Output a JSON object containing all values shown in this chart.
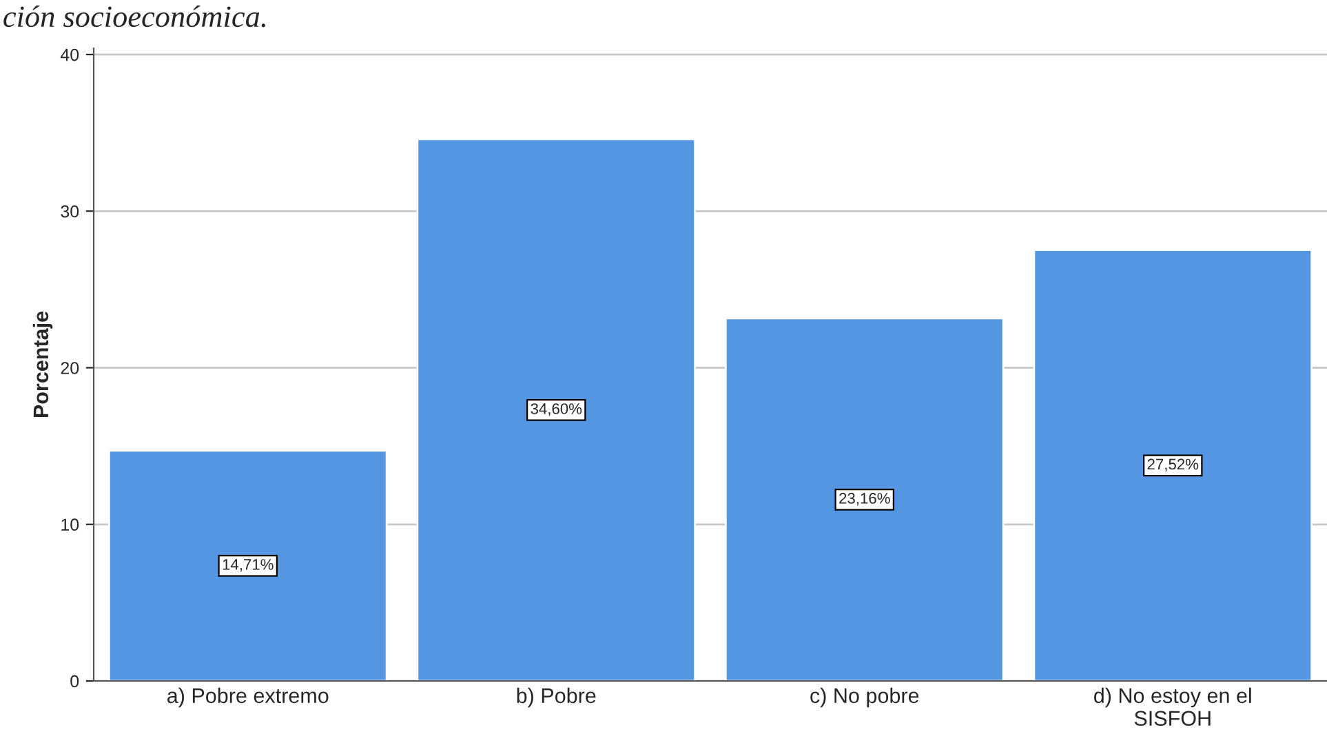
{
  "chart_data": {
    "type": "bar",
    "ylabel": "Porcentaje",
    "categories": [
      "a) Pobre extremo",
      "b) Pobre",
      "c) No pobre",
      "d) No estoy en el\nSISFOH"
    ],
    "values": [
      14.71,
      34.6,
      23.16,
      27.52
    ],
    "value_labels": [
      "14,71%",
      "34,60%",
      "23,16%",
      "27,52%"
    ],
    "color": "#5596e3",
    "ylim": [
      0,
      40.4
    ],
    "yticks": [
      0,
      10,
      20,
      30,
      40
    ],
    "grid": "y",
    "annotations": [
      "ción socioeconómica."
    ]
  }
}
